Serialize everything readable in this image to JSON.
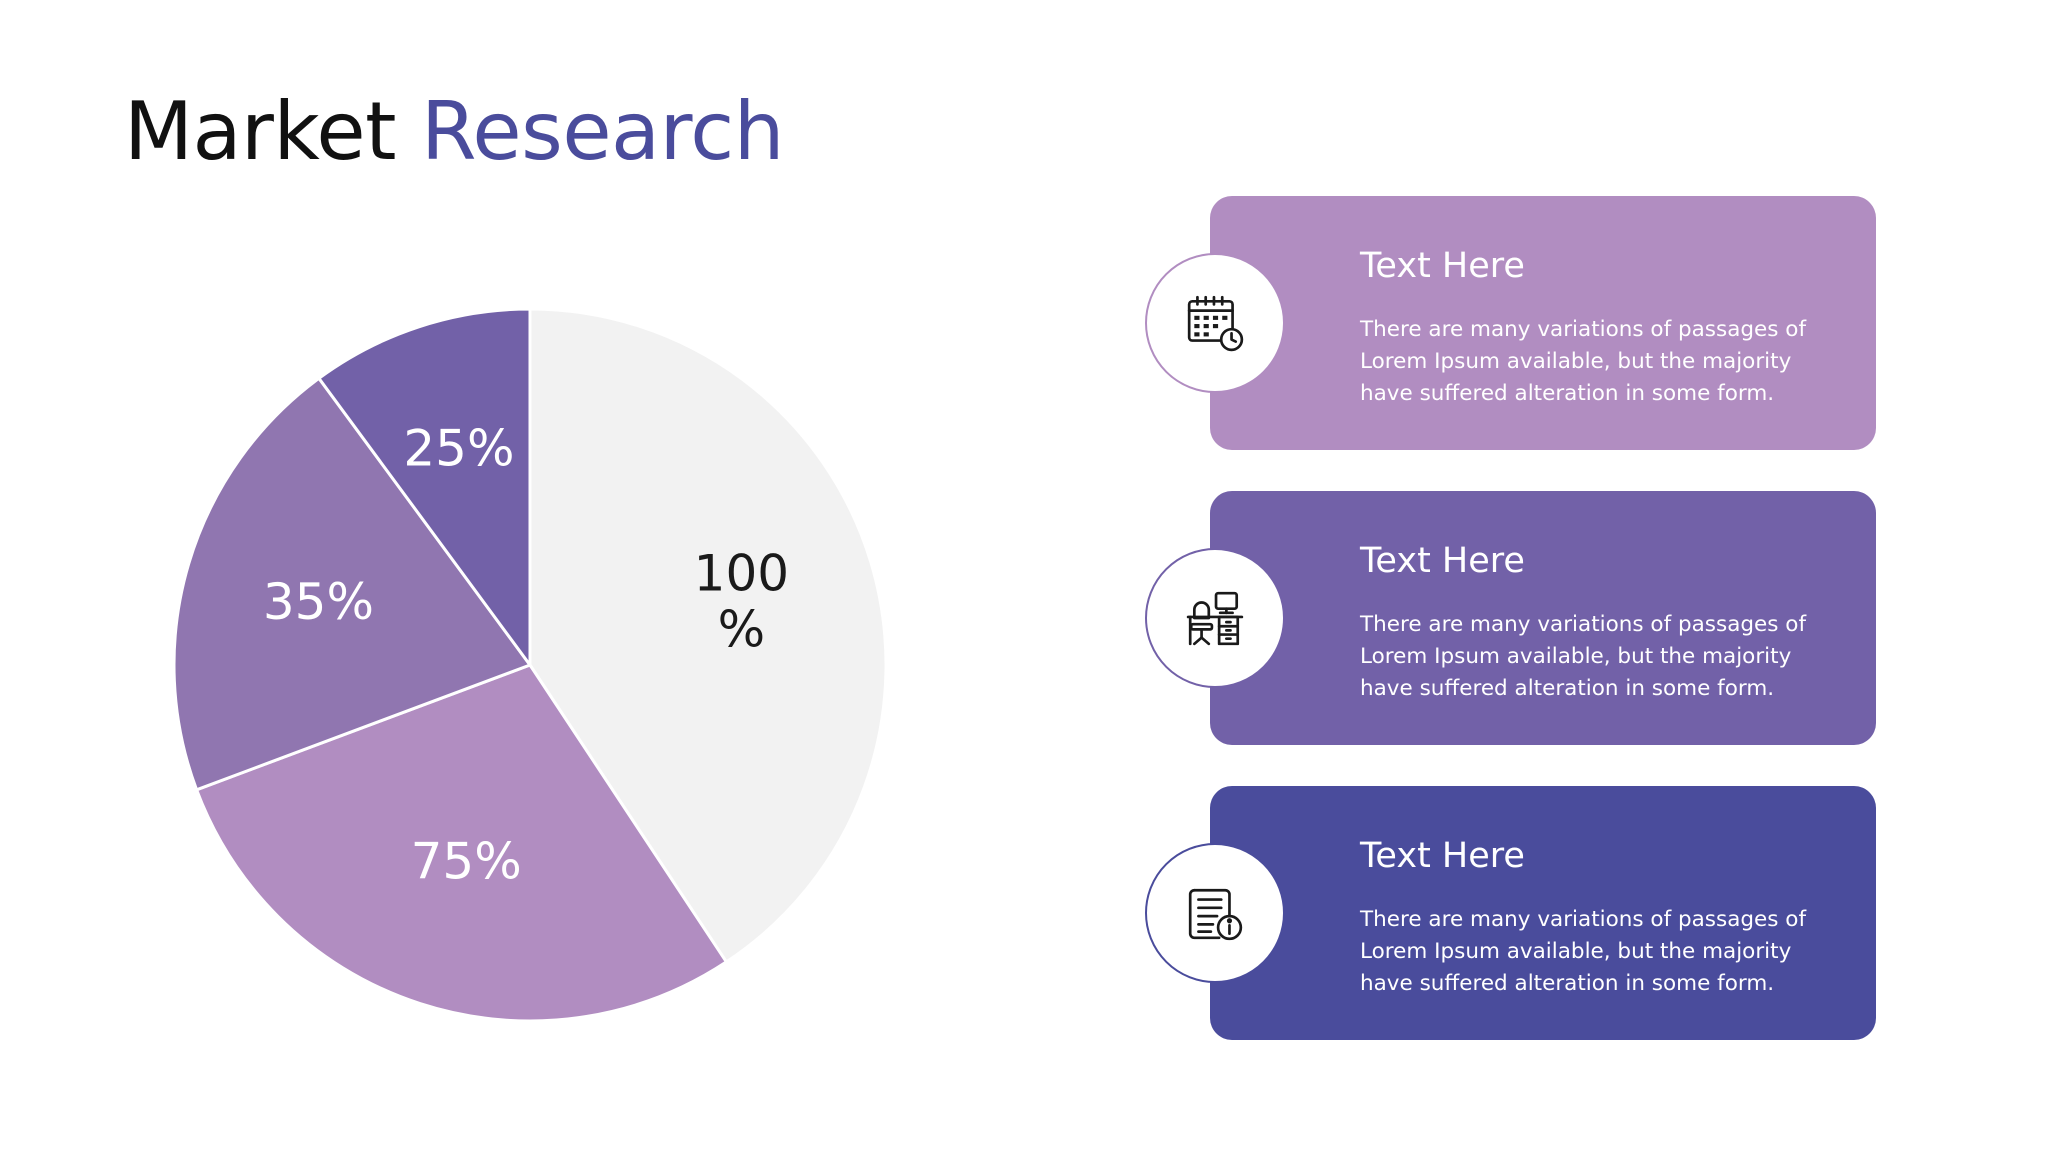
{
  "slide": {
    "title_part1": "Market",
    "title_part2": "Research"
  },
  "colors": {
    "title_dark": "#111111",
    "title_accent": "#4a4c9c",
    "slice_light": "#f2f2f2",
    "slice_lavender": "#b18dc1",
    "slice_mauve": "#9076b0",
    "slice_violet": "#7261a8",
    "card_1": "#b18dc1",
    "card_2": "#7261a8",
    "card_3": "#4a4c9c"
  },
  "chart_data": {
    "type": "pie",
    "title": "",
    "slices": [
      {
        "label": "100 %",
        "value": 40.7,
        "color": "#f2f2f2",
        "text_color": "#1a1a1a"
      },
      {
        "label": "75%",
        "value": 28.6,
        "color": "#b18dc1",
        "text_color": "#ffffff"
      },
      {
        "label": "35%",
        "value": 20.6,
        "color": "#9076b0",
        "text_color": "#ffffff"
      },
      {
        "label": "25%",
        "value": 10.1,
        "color": "#7261a8",
        "text_color": "#ffffff"
      }
    ],
    "start_angle_deg": 0,
    "direction": "clockwise"
  },
  "cards": [
    {
      "title": "Text Here",
      "body": "There are many variations of passages of Lorem Ipsum available, but the majority have suffered alteration in some form.",
      "icon": "calendar-clock-icon"
    },
    {
      "title": "Text Here",
      "body": "There are many variations of passages of Lorem Ipsum available, but the majority have suffered alteration in some form.",
      "icon": "workspace-desk-icon"
    },
    {
      "title": "Text Here",
      "body": "There are many variations of passages of Lorem Ipsum available, but the majority have suffered alteration in some form.",
      "icon": "document-info-icon"
    }
  ]
}
